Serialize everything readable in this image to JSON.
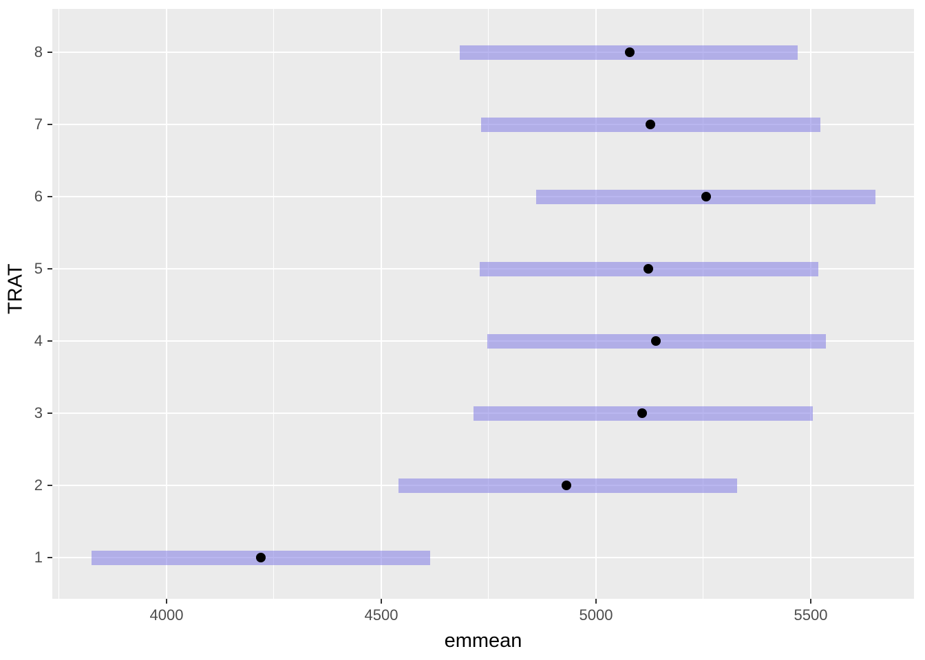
{
  "chart_data": {
    "type": "interval",
    "description": "Horizontal confidence-interval bars with black point estimates (emmeans-style plot)",
    "title": "",
    "xlabel": "emmean",
    "ylabel": "TRAT",
    "categories": [
      "1",
      "2",
      "3",
      "4",
      "5",
      "6",
      "7",
      "8"
    ],
    "points": [
      {
        "trat": 1,
        "emmean": 4220,
        "lower": 3825,
        "upper": 4614
      },
      {
        "trat": 2,
        "emmean": 4931,
        "lower": 4540,
        "upper": 5329
      },
      {
        "trat": 3,
        "emmean": 5107,
        "lower": 4715,
        "upper": 5505
      },
      {
        "trat": 4,
        "emmean": 5139,
        "lower": 4747,
        "upper": 5535
      },
      {
        "trat": 5,
        "emmean": 5122,
        "lower": 4729,
        "upper": 5518
      },
      {
        "trat": 6,
        "emmean": 5256,
        "lower": 4861,
        "upper": 5651
      },
      {
        "trat": 7,
        "emmean": 5127,
        "lower": 4732,
        "upper": 5522
      },
      {
        "trat": 8,
        "emmean": 5078,
        "lower": 4683,
        "upper": 5470
      }
    ],
    "x_ticks": [
      4000,
      4500,
      5000,
      5500
    ],
    "x_minor_ticks": [
      3750,
      4250,
      4750,
      5250,
      5750
    ],
    "xlim": [
      3734,
      5740.4
    ],
    "ylim": [
      0.43,
      8.6
    ],
    "grid": "major-and-minor-x, major-y, white on gray",
    "legend": "none",
    "colors": {
      "panel_background": "#EBEBEB",
      "gridline": "#FFFFFF",
      "bar_fill_effective": "#B1AEE7",
      "bar_fill_rgba": "rgba(130,124,228,0.55)",
      "point": "#000000",
      "tick_mark": "#333333",
      "tick_label": "#4D4D4D",
      "axis_title": "#000000",
      "figure_background": "#FFFFFF"
    }
  }
}
